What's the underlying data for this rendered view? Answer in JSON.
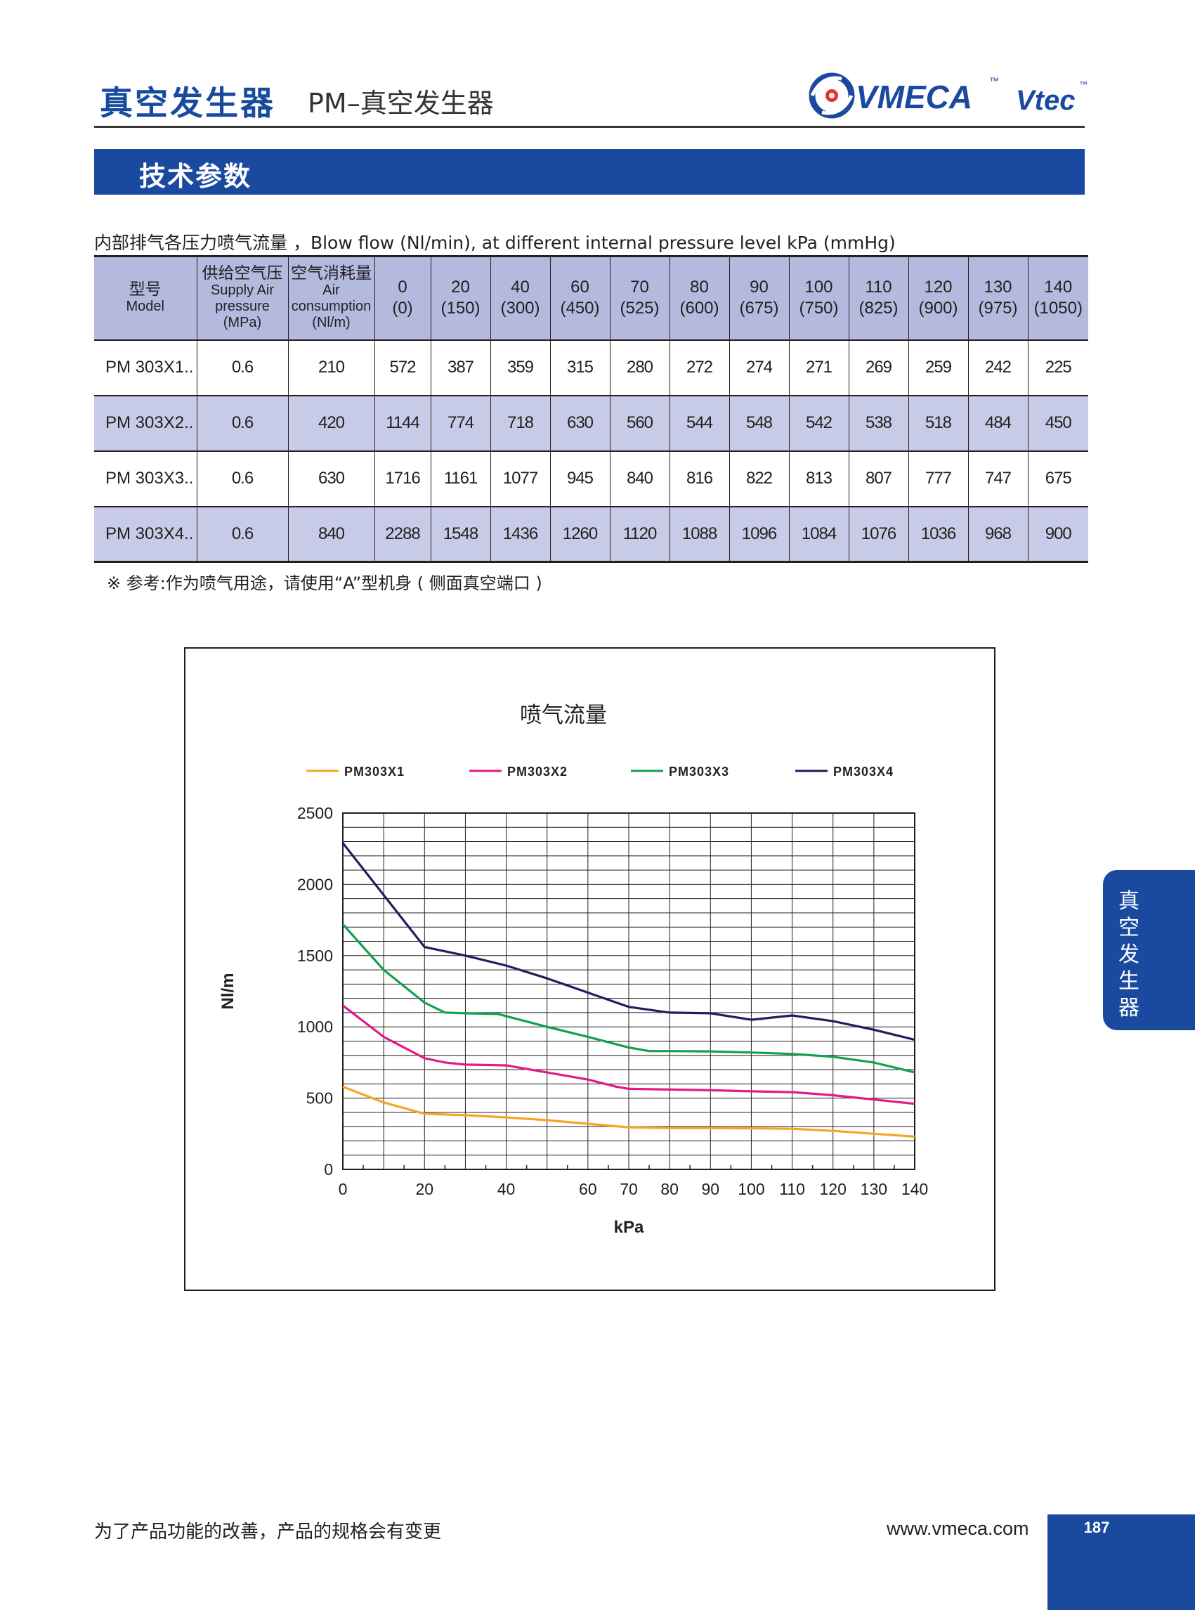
{
  "header": {
    "title": "真空发生器",
    "subtitle": "PM–真空发生器",
    "logo_text": "VMECA",
    "logo_tm": "™",
    "logo_text2": "Vtec",
    "logo_tm2": "™"
  },
  "section": {
    "title": "技术参数"
  },
  "table": {
    "caption": "内部排气各压力喷气流量 ，Blow flow (Nl/min), at different internal pressure level kPa (mmHg)",
    "header": {
      "model_cn": "型号",
      "model_en": "Model",
      "supply_cn": "供给空气压",
      "supply_en1": "Supply Air",
      "supply_en2": "pressure",
      "supply_en3": "(MPa)",
      "air_cn": "空气消耗量",
      "air_en1": "Air",
      "air_en2": "consumption",
      "air_en3": "(Nl/m)",
      "pressures": [
        {
          "kpa": "0",
          "mmhg": "(0)"
        },
        {
          "kpa": "20",
          "mmhg": "(150)"
        },
        {
          "kpa": "40",
          "mmhg": "(300)"
        },
        {
          "kpa": "60",
          "mmhg": "(450)"
        },
        {
          "kpa": "70",
          "mmhg": "(525)"
        },
        {
          "kpa": "80",
          "mmhg": "(600)"
        },
        {
          "kpa": "90",
          "mmhg": "(675)"
        },
        {
          "kpa": "100",
          "mmhg": "(750)"
        },
        {
          "kpa": "110",
          "mmhg": "(825)"
        },
        {
          "kpa": "120",
          "mmhg": "(900)"
        },
        {
          "kpa": "130",
          "mmhg": "(975)"
        },
        {
          "kpa": "140",
          "mmhg": "(1050)"
        }
      ]
    },
    "rows": [
      {
        "model": "PM 303X1..",
        "supply": "0.6",
        "air": "210",
        "values": [
          "572",
          "387",
          "359",
          "315",
          "280",
          "272",
          "274",
          "271",
          "269",
          "259",
          "242",
          "225"
        ]
      },
      {
        "model": "PM 303X2..",
        "supply": "0.6",
        "air": "420",
        "values": [
          "1144",
          "774",
          "718",
          "630",
          "560",
          "544",
          "548",
          "542",
          "538",
          "518",
          "484",
          "450"
        ]
      },
      {
        "model": "PM 303X3..",
        "supply": "0.6",
        "air": "630",
        "values": [
          "1716",
          "1161",
          "1077",
          "945",
          "840",
          "816",
          "822",
          "813",
          "807",
          "777",
          "747",
          "675"
        ]
      },
      {
        "model": "PM 303X4..",
        "supply": "0.6",
        "air": "840",
        "values": [
          "2288",
          "1548",
          "1436",
          "1260",
          "1120",
          "1088",
          "1096",
          "1084",
          "1076",
          "1036",
          "968",
          "900"
        ]
      }
    ],
    "note": "※ 参考:作为喷气用途，请使用“A”型机身 ( 侧面真空端口 )"
  },
  "chart_data": {
    "type": "line",
    "title": "喷气流量",
    "xlabel": "kPa",
    "ylabel": "Nl/m",
    "xlim": [
      0,
      140
    ],
    "ylim": [
      0,
      2500
    ],
    "x_ticks": [
      "0",
      "20",
      "40",
      "60",
      "70",
      "80",
      "90",
      "100",
      "110",
      "120",
      "130",
      "140"
    ],
    "y_ticks": [
      "0",
      "500",
      "1000",
      "1500",
      "2000",
      "2500"
    ],
    "grid": true,
    "legend_position": "top",
    "series": [
      {
        "name": "PM303X1",
        "color": "#f5a623",
        "points": [
          [
            0,
            580
          ],
          [
            10,
            470
          ],
          [
            20,
            390
          ],
          [
            30,
            380
          ],
          [
            40,
            365
          ],
          [
            50,
            345
          ],
          [
            60,
            320
          ],
          [
            70,
            295
          ],
          [
            80,
            290
          ],
          [
            90,
            290
          ],
          [
            100,
            288
          ],
          [
            110,
            285
          ],
          [
            120,
            270
          ],
          [
            130,
            250
          ],
          [
            140,
            230
          ]
        ]
      },
      {
        "name": "PM303X2",
        "color": "#e6198a",
        "points": [
          [
            0,
            1150
          ],
          [
            10,
            930
          ],
          [
            20,
            780
          ],
          [
            25,
            750
          ],
          [
            30,
            735
          ],
          [
            40,
            730
          ],
          [
            50,
            680
          ],
          [
            60,
            630
          ],
          [
            67,
            580
          ],
          [
            70,
            565
          ],
          [
            80,
            560
          ],
          [
            90,
            555
          ],
          [
            100,
            548
          ],
          [
            110,
            542
          ],
          [
            120,
            520
          ],
          [
            130,
            490
          ],
          [
            140,
            460
          ]
        ]
      },
      {
        "name": "PM303X3",
        "color": "#12a150",
        "points": [
          [
            0,
            1720
          ],
          [
            10,
            1400
          ],
          [
            20,
            1170
          ],
          [
            25,
            1100
          ],
          [
            30,
            1095
          ],
          [
            38,
            1090
          ],
          [
            50,
            1000
          ],
          [
            60,
            930
          ],
          [
            70,
            855
          ],
          [
            75,
            830
          ],
          [
            80,
            830
          ],
          [
            90,
            828
          ],
          [
            100,
            820
          ],
          [
            110,
            810
          ],
          [
            120,
            790
          ],
          [
            130,
            750
          ],
          [
            140,
            680
          ]
        ]
      },
      {
        "name": "PM303X4",
        "color": "#1f1f5c",
        "points": [
          [
            0,
            2290
          ],
          [
            20,
            1560
          ],
          [
            30,
            1500
          ],
          [
            40,
            1430
          ],
          [
            50,
            1340
          ],
          [
            60,
            1240
          ],
          [
            70,
            1140
          ],
          [
            80,
            1100
          ],
          [
            90,
            1095
          ],
          [
            100,
            1050
          ],
          [
            110,
            1080
          ],
          [
            120,
            1040
          ],
          [
            130,
            980
          ],
          [
            140,
            910
          ]
        ]
      }
    ]
  },
  "side_tab": {
    "text": "真空发生器"
  },
  "footer": {
    "note": "为了产品功能的改善，产品的规格会有变更",
    "url": "www.vmeca.com",
    "page": "187"
  }
}
